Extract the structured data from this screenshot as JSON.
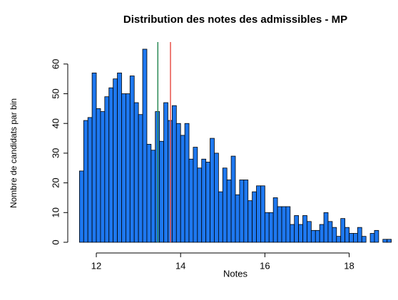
{
  "chart_data": {
    "type": "histogram",
    "title": "Distribution des notes des admissibles - MP",
    "xlabel": "Notes",
    "ylabel": "Nombre de candidats par bin",
    "color": "#1e78f0",
    "bins": [
      11.6,
      11.7,
      11.8,
      11.9,
      12.0,
      12.1,
      12.2,
      12.3,
      12.4,
      12.5,
      12.6,
      12.7,
      12.8,
      12.9,
      13.0,
      13.1,
      13.2,
      13.3,
      13.4,
      13.5,
      13.6,
      13.7,
      13.8,
      13.9,
      14.0,
      14.1,
      14.2,
      14.3,
      14.4,
      14.5,
      14.6,
      14.7,
      14.8,
      14.9,
      15.0,
      15.1,
      15.2,
      15.3,
      15.4,
      15.5,
      15.6,
      15.7,
      15.8,
      15.9,
      16.0,
      16.1,
      16.2,
      16.3,
      16.4,
      16.5,
      16.6,
      16.7,
      16.8,
      16.9,
      17.0,
      17.1,
      17.2,
      17.3,
      17.4,
      17.5,
      17.6,
      17.7,
      17.8,
      17.9,
      18.0,
      18.1,
      18.2,
      18.3,
      18.4,
      18.5,
      18.6,
      18.7,
      18.8,
      18.9,
      19.0
    ],
    "values": [
      24,
      41,
      42,
      57,
      45,
      44,
      49,
      52,
      55,
      57,
      50,
      50,
      56,
      47,
      43,
      65,
      33,
      31,
      44,
      34,
      47,
      41,
      46,
      40,
      36,
      40,
      28,
      32,
      25,
      28,
      27,
      35,
      30,
      17,
      25,
      21,
      29,
      16,
      21,
      21,
      14,
      17,
      19,
      19,
      10,
      10,
      15,
      12,
      12,
      12,
      6,
      9,
      6,
      9,
      7,
      4,
      4,
      6,
      10,
      7,
      5,
      2,
      8,
      5,
      3,
      3,
      5,
      2,
      0,
      3,
      4,
      0,
      1,
      1
    ],
    "vlines": [
      {
        "value": 13.46,
        "color": "#2e8b57"
      },
      {
        "value": 13.76,
        "color": "#e8524a"
      }
    ],
    "xlim": [
      11.6,
      19.0
    ],
    "ylim": [
      0,
      65
    ],
    "xticks": [
      12,
      14,
      16,
      18
    ],
    "yticks": [
      0,
      10,
      20,
      30,
      40,
      50,
      60
    ]
  }
}
